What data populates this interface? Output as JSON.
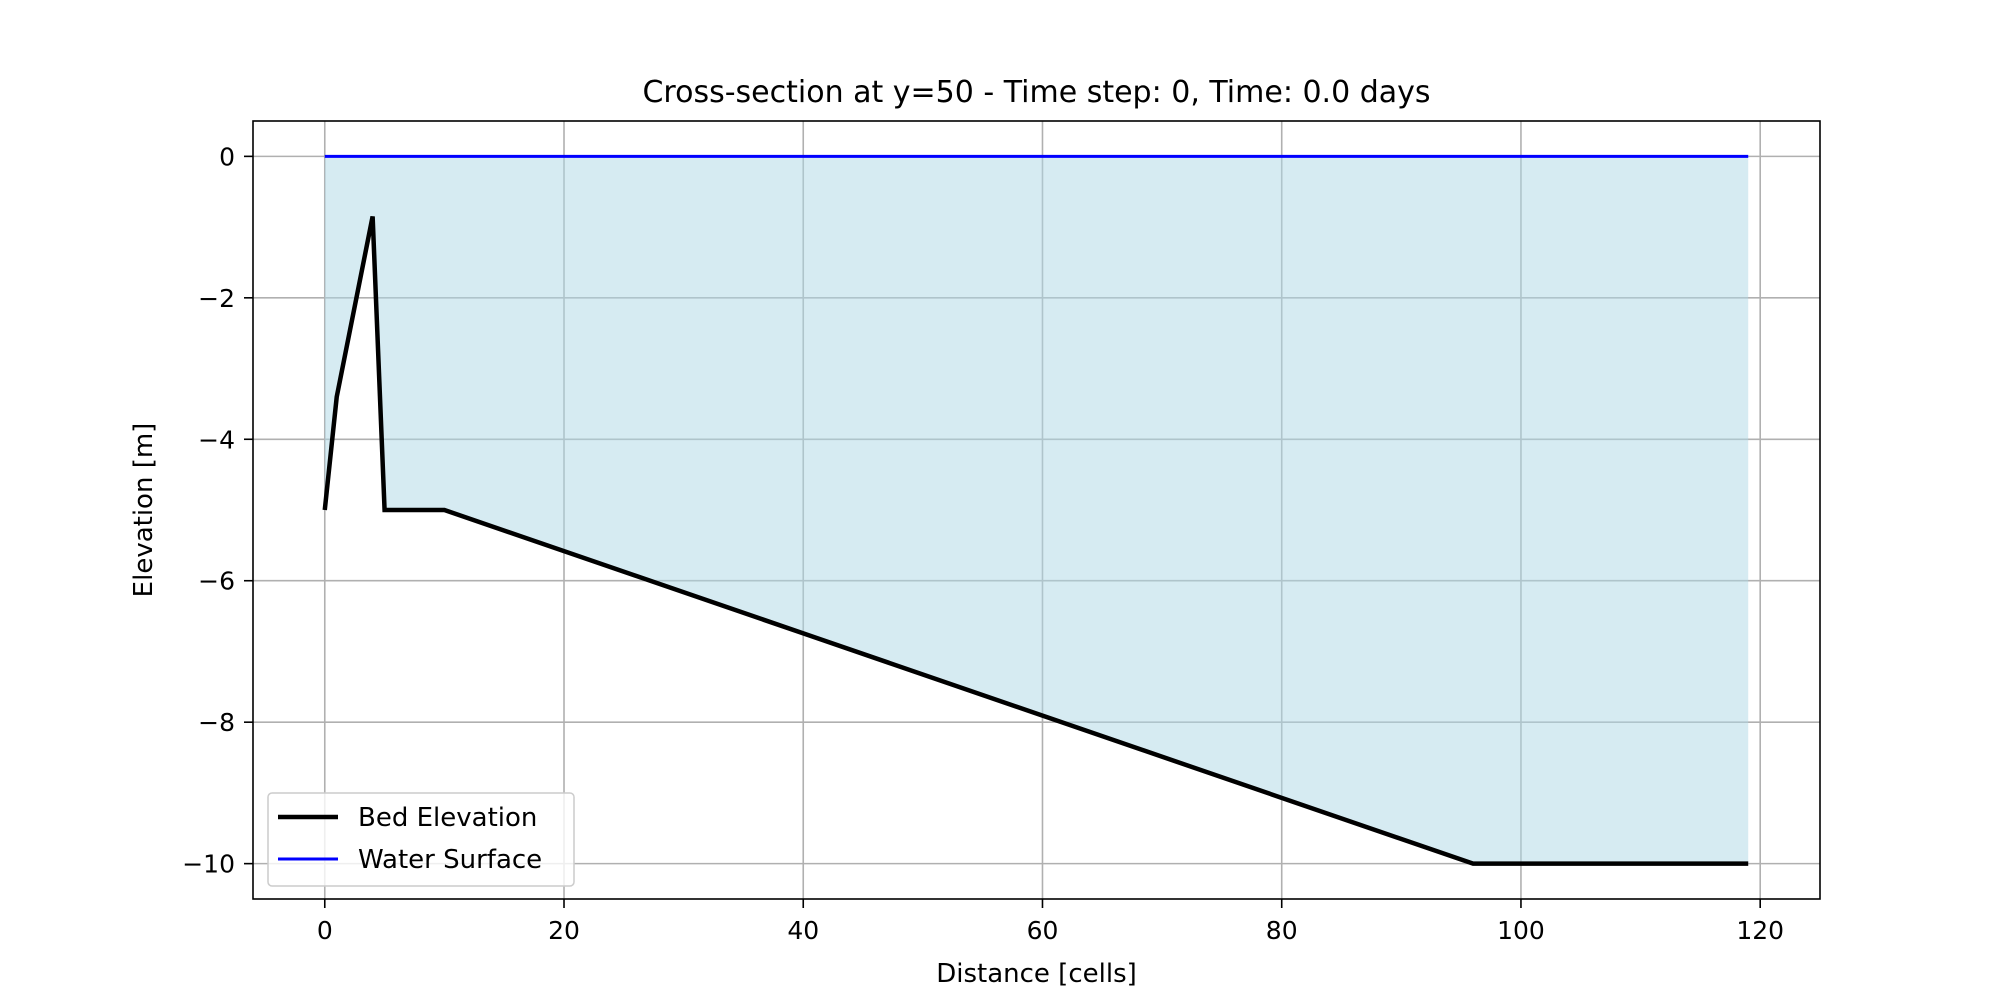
{
  "chart_data": {
    "type": "line",
    "title": "Cross-section at y=50 - Time step: 0, Time: 0.0 days",
    "xlabel": "Distance [cells]",
    "ylabel": "Elevation [m]",
    "xlim": [
      -6,
      125
    ],
    "ylim": [
      -10.5,
      0.5
    ],
    "xticks": [
      0,
      20,
      40,
      60,
      80,
      100,
      120
    ],
    "yticks": [
      0,
      -2,
      -4,
      -6,
      -8,
      -10
    ],
    "grid": true,
    "legend_position": "lower-left",
    "fill_between": {
      "color": "#add8e6",
      "description": "water column between bed and surface"
    },
    "series": [
      {
        "name": "Bed Elevation",
        "color": "#000000",
        "x": [
          0,
          1,
          4,
          5,
          10,
          96,
          119
        ],
        "y": [
          -5.0,
          -3.4,
          -0.85,
          -5.0,
          -5.0,
          -10.0,
          -10.0
        ]
      },
      {
        "name": "Water Surface",
        "color": "#0000ff",
        "x": [
          0,
          119
        ],
        "y": [
          0.0,
          0.0
        ]
      }
    ]
  }
}
